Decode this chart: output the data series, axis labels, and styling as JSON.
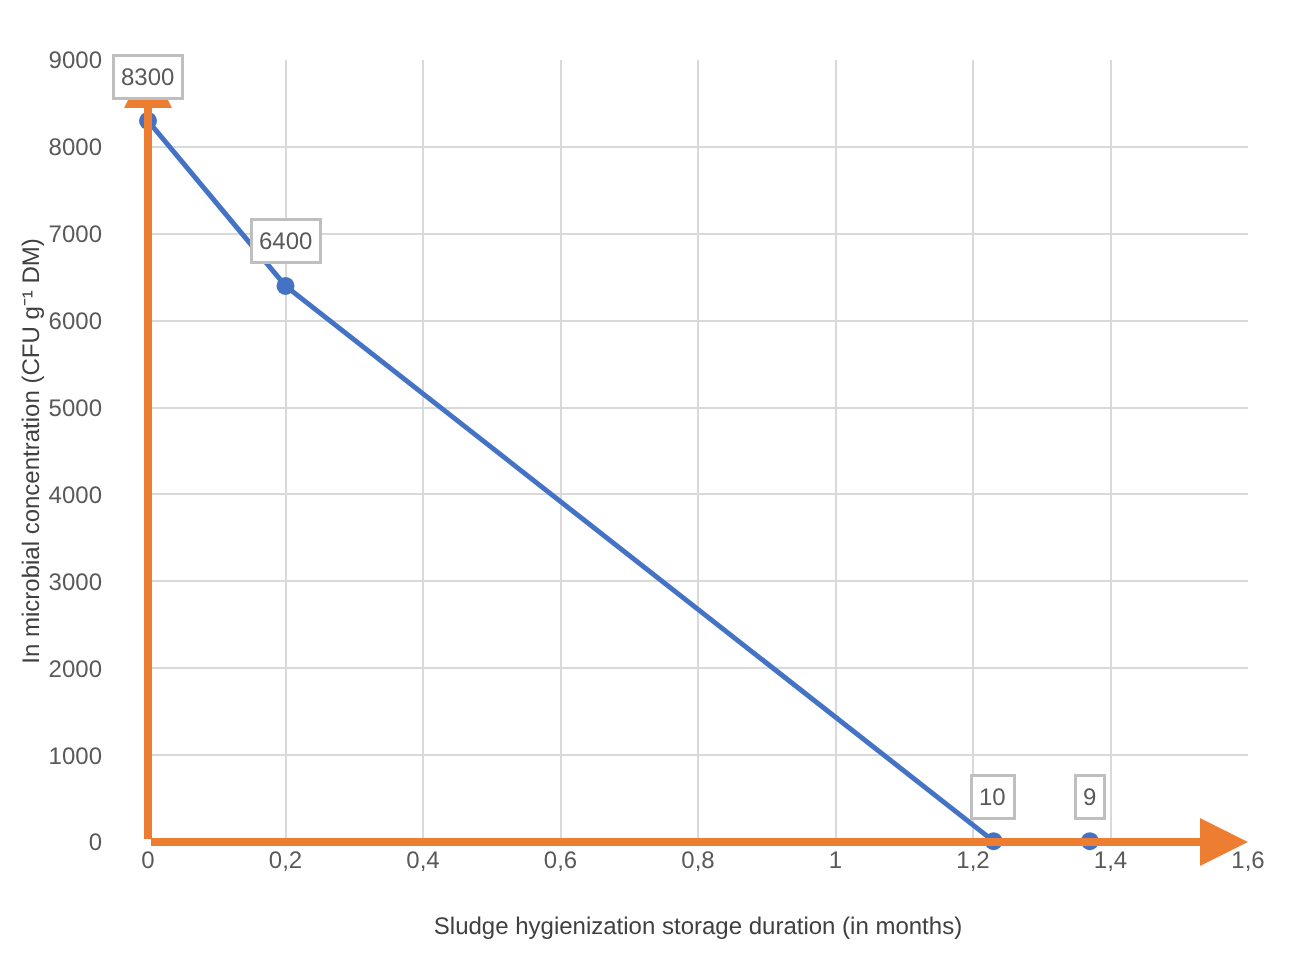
{
  "chart_data": {
    "type": "line",
    "xlabel": "Sludge hygienization storage duration (in months)",
    "ylabel": "In microbial concentration (CFU g⁻¹ DM)",
    "x": [
      0,
      0.2,
      1.23,
      1.37
    ],
    "series": [
      {
        "color": "#4472c4",
        "values": [
          8300,
          6400,
          10,
          9
        ]
      }
    ],
    "xlim": [
      0,
      1.6
    ],
    "xticks": [
      0,
      {
        "value": 0.2,
        "label": "0,2"
      },
      {
        "value": 0.4,
        "label": "0,4"
      },
      {
        "value": 0.6,
        "label": "0,6"
      },
      {
        "value": 0.8,
        "label": "0,8"
      },
      1,
      {
        "value": 1.2,
        "label": "1,2"
      },
      {
        "value": 1.4,
        "label": "1,4"
      },
      {
        "value": 1.6,
        "label": "1,6"
      }
    ],
    "ylim": [
      0,
      9000
    ],
    "yticks": [
      0,
      1000,
      2000,
      3000,
      4000,
      5000,
      6000,
      7000,
      8000,
      9000
    ],
    "grid": true,
    "marker": "circle",
    "line_style": "solid",
    "data_labels": true
  }
}
